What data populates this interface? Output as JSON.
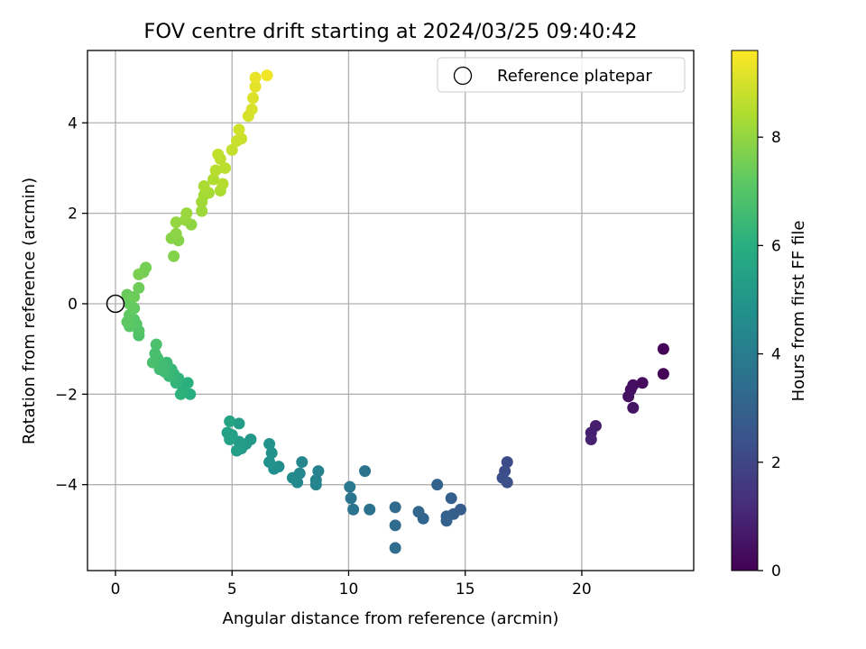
{
  "chart_data": {
    "type": "scatter",
    "title": "FOV centre drift starting at 2024/03/25 09:40:42",
    "xlabel": "Angular distance from reference (arcmin)",
    "ylabel": "Rotation from reference (arcmin)",
    "xlim": [
      -1.2,
      24.8
    ],
    "ylim": [
      -5.9,
      5.6
    ],
    "xticks": [
      0,
      5,
      10,
      15,
      20
    ],
    "yticks": [
      -4,
      -2,
      0,
      2,
      4
    ],
    "grid": true,
    "colormap": "viridis",
    "colorbar": {
      "label": "Hours from first FF file",
      "range": [
        0,
        9.6
      ],
      "ticks": [
        0,
        2,
        4,
        6,
        8
      ]
    },
    "legend": {
      "position": "top-right",
      "entries": [
        "Reference platepar"
      ]
    },
    "reference_point": {
      "x": 0,
      "y": 0,
      "label": "Reference platepar"
    },
    "points": [
      {
        "x": 23.5,
        "y": -1.0,
        "h": 0.05
      },
      {
        "x": 23.5,
        "y": -1.55,
        "h": 0.1
      },
      {
        "x": 22.6,
        "y": -1.75,
        "h": 0.3
      },
      {
        "x": 22.2,
        "y": -1.8,
        "h": 0.35
      },
      {
        "x": 22.1,
        "y": -1.9,
        "h": 0.4
      },
      {
        "x": 22.0,
        "y": -2.05,
        "h": 0.45
      },
      {
        "x": 22.2,
        "y": -2.3,
        "h": 0.5
      },
      {
        "x": 20.6,
        "y": -2.7,
        "h": 0.8
      },
      {
        "x": 20.4,
        "y": -2.85,
        "h": 0.85
      },
      {
        "x": 20.4,
        "y": -3.0,
        "h": 0.9
      },
      {
        "x": 16.8,
        "y": -3.5,
        "h": 2.2
      },
      {
        "x": 16.7,
        "y": -3.7,
        "h": 2.25
      },
      {
        "x": 16.6,
        "y": -3.85,
        "h": 2.3
      },
      {
        "x": 16.8,
        "y": -3.95,
        "h": 2.35
      },
      {
        "x": 14.8,
        "y": -4.55,
        "h": 2.8
      },
      {
        "x": 14.5,
        "y": -4.65,
        "h": 2.85
      },
      {
        "x": 14.4,
        "y": -4.3,
        "h": 2.9
      },
      {
        "x": 14.2,
        "y": -4.7,
        "h": 2.95
      },
      {
        "x": 14.2,
        "y": -4.8,
        "h": 3.0
      },
      {
        "x": 13.8,
        "y": -4.0,
        "h": 3.05
      },
      {
        "x": 13.2,
        "y": -4.75,
        "h": 3.1
      },
      {
        "x": 13.0,
        "y": -4.6,
        "h": 3.15
      },
      {
        "x": 12.0,
        "y": -4.5,
        "h": 3.3
      },
      {
        "x": 12.0,
        "y": -4.9,
        "h": 3.35
      },
      {
        "x": 12.0,
        "y": -5.4,
        "h": 3.4
      },
      {
        "x": 10.9,
        "y": -4.55,
        "h": 3.6
      },
      {
        "x": 10.7,
        "y": -3.7,
        "h": 3.65
      },
      {
        "x": 10.2,
        "y": -4.55,
        "h": 3.7
      },
      {
        "x": 10.1,
        "y": -4.3,
        "h": 3.75
      },
      {
        "x": 10.05,
        "y": -4.05,
        "h": 3.8
      },
      {
        "x": 8.7,
        "y": -3.7,
        "h": 4.2
      },
      {
        "x": 8.6,
        "y": -3.9,
        "h": 4.25
      },
      {
        "x": 8.6,
        "y": -4.0,
        "h": 4.3
      },
      {
        "x": 8.0,
        "y": -3.5,
        "h": 4.4
      },
      {
        "x": 7.9,
        "y": -3.75,
        "h": 4.45
      },
      {
        "x": 7.8,
        "y": -3.95,
        "h": 4.5
      },
      {
        "x": 7.6,
        "y": -3.85,
        "h": 4.55
      },
      {
        "x": 7.0,
        "y": -3.6,
        "h": 4.7
      },
      {
        "x": 6.8,
        "y": -3.65,
        "h": 4.75
      },
      {
        "x": 6.7,
        "y": -3.3,
        "h": 4.8
      },
      {
        "x": 6.6,
        "y": -3.5,
        "h": 4.85
      },
      {
        "x": 6.6,
        "y": -3.1,
        "h": 4.9
      },
      {
        "x": 5.8,
        "y": -3.0,
        "h": 5.1
      },
      {
        "x": 5.6,
        "y": -3.1,
        "h": 5.15
      },
      {
        "x": 5.4,
        "y": -3.2,
        "h": 5.2
      },
      {
        "x": 5.3,
        "y": -3.05,
        "h": 5.25
      },
      {
        "x": 5.3,
        "y": -2.65,
        "h": 5.3
      },
      {
        "x": 5.2,
        "y": -3.25,
        "h": 5.35
      },
      {
        "x": 5.0,
        "y": -2.9,
        "h": 5.4
      },
      {
        "x": 4.9,
        "y": -3.0,
        "h": 5.45
      },
      {
        "x": 4.8,
        "y": -2.85,
        "h": 5.5
      },
      {
        "x": 4.9,
        "y": -2.6,
        "h": 5.55
      },
      {
        "x": 3.2,
        "y": -2.0,
        "h": 6.0
      },
      {
        "x": 3.1,
        "y": -1.75,
        "h": 6.05
      },
      {
        "x": 2.9,
        "y": -1.9,
        "h": 6.1
      },
      {
        "x": 2.8,
        "y": -2.0,
        "h": 6.15
      },
      {
        "x": 2.7,
        "y": -1.65,
        "h": 6.2
      },
      {
        "x": 2.6,
        "y": -1.75,
        "h": 6.25
      },
      {
        "x": 2.5,
        "y": -1.55,
        "h": 6.3
      },
      {
        "x": 2.4,
        "y": -1.45,
        "h": 6.35
      },
      {
        "x": 2.3,
        "y": -1.6,
        "h": 6.4
      },
      {
        "x": 2.2,
        "y": -1.3,
        "h": 6.45
      },
      {
        "x": 2.1,
        "y": -1.5,
        "h": 6.5
      },
      {
        "x": 2.0,
        "y": -1.35,
        "h": 6.55
      },
      {
        "x": 1.9,
        "y": -1.45,
        "h": 6.6
      },
      {
        "x": 1.8,
        "y": -1.2,
        "h": 6.65
      },
      {
        "x": 1.7,
        "y": -1.1,
        "h": 6.7
      },
      {
        "x": 1.6,
        "y": -1.3,
        "h": 6.75
      },
      {
        "x": 1.75,
        "y": -0.9,
        "h": 6.8
      },
      {
        "x": 1.0,
        "y": -0.7,
        "h": 6.9
      },
      {
        "x": 1.0,
        "y": -0.6,
        "h": 6.95
      },
      {
        "x": 0.9,
        "y": -0.45,
        "h": 7.0
      },
      {
        "x": 0.8,
        "y": -0.35,
        "h": 7.05
      },
      {
        "x": 0.6,
        "y": -0.5,
        "h": 7.1
      },
      {
        "x": 0.5,
        "y": -0.4,
        "h": 7.15
      },
      {
        "x": 0.6,
        "y": -0.25,
        "h": 7.2
      },
      {
        "x": 0.8,
        "y": -0.1,
        "h": 7.25
      },
      {
        "x": 0.6,
        "y": 0.0,
        "h": 7.3
      },
      {
        "x": 0.5,
        "y": 0.2,
        "h": 7.35
      },
      {
        "x": 0.8,
        "y": 0.15,
        "h": 7.4
      },
      {
        "x": 1.0,
        "y": 0.35,
        "h": 7.45
      },
      {
        "x": 1.2,
        "y": 0.7,
        "h": 7.5
      },
      {
        "x": 1.3,
        "y": 0.8,
        "h": 7.55
      },
      {
        "x": 1.0,
        "y": 0.65,
        "h": 7.6
      },
      {
        "x": 2.5,
        "y": 1.05,
        "h": 7.75
      },
      {
        "x": 2.7,
        "y": 1.4,
        "h": 7.8
      },
      {
        "x": 2.4,
        "y": 1.45,
        "h": 7.85
      },
      {
        "x": 2.6,
        "y": 1.55,
        "h": 7.9
      },
      {
        "x": 3.25,
        "y": 1.75,
        "h": 7.95
      },
      {
        "x": 2.6,
        "y": 1.8,
        "h": 8.0
      },
      {
        "x": 3.0,
        "y": 1.85,
        "h": 8.05
      },
      {
        "x": 3.05,
        "y": 2.0,
        "h": 8.1
      },
      {
        "x": 3.7,
        "y": 2.05,
        "h": 8.15
      },
      {
        "x": 3.7,
        "y": 2.25,
        "h": 8.2
      },
      {
        "x": 3.8,
        "y": 2.4,
        "h": 8.25
      },
      {
        "x": 4.0,
        "y": 2.45,
        "h": 8.3
      },
      {
        "x": 3.8,
        "y": 2.6,
        "h": 8.35
      },
      {
        "x": 4.5,
        "y": 2.5,
        "h": 8.4
      },
      {
        "x": 4.2,
        "y": 2.75,
        "h": 8.45
      },
      {
        "x": 4.6,
        "y": 2.65,
        "h": 8.5
      },
      {
        "x": 4.3,
        "y": 2.95,
        "h": 8.55
      },
      {
        "x": 4.7,
        "y": 3.0,
        "h": 8.6
      },
      {
        "x": 4.5,
        "y": 3.2,
        "h": 8.65
      },
      {
        "x": 4.4,
        "y": 3.3,
        "h": 8.7
      },
      {
        "x": 5.0,
        "y": 3.4,
        "h": 8.75
      },
      {
        "x": 5.2,
        "y": 3.6,
        "h": 8.8
      },
      {
        "x": 5.4,
        "y": 3.65,
        "h": 8.85
      },
      {
        "x": 5.3,
        "y": 3.85,
        "h": 8.9
      },
      {
        "x": 5.7,
        "y": 4.15,
        "h": 9.0
      },
      {
        "x": 5.85,
        "y": 4.3,
        "h": 9.05
      },
      {
        "x": 5.9,
        "y": 4.55,
        "h": 9.1
      },
      {
        "x": 6.0,
        "y": 4.8,
        "h": 9.2
      },
      {
        "x": 6.0,
        "y": 5.0,
        "h": 9.3
      },
      {
        "x": 6.5,
        "y": 5.05,
        "h": 9.4
      }
    ]
  }
}
